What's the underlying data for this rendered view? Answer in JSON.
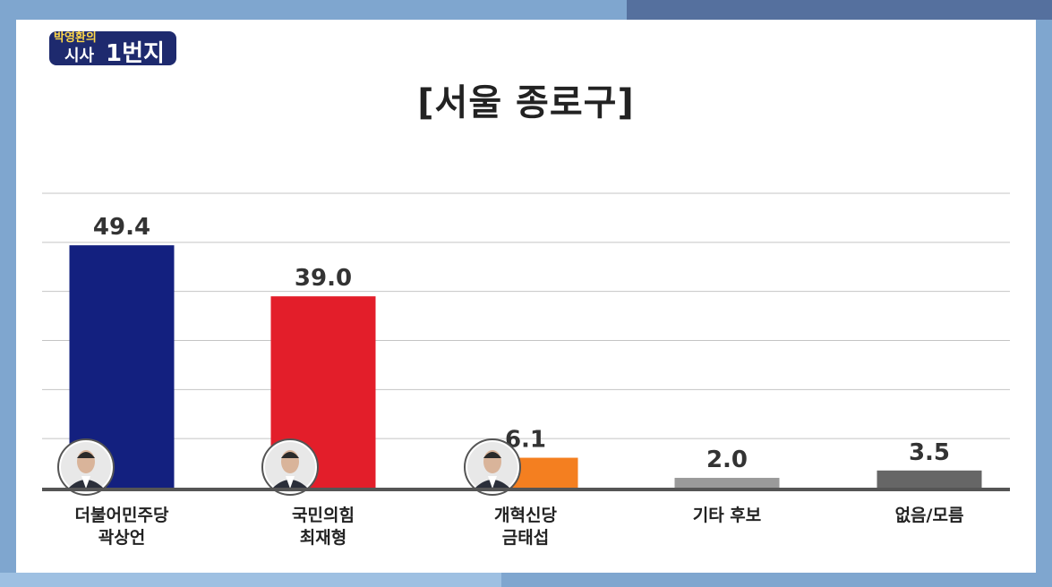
{
  "logo": {
    "line1": "박영환의",
    "line2": "시사",
    "line3": "1번지"
  },
  "title": "[서울 종로구]",
  "chart_data": {
    "type": "bar",
    "title": "[서울 종로구]",
    "categories": [
      {
        "line1": "더불어민주당",
        "line2": "곽상언"
      },
      {
        "line1": "국민의힘",
        "line2": "최재형"
      },
      {
        "line1": "개혁신당",
        "line2": "금태섭"
      },
      {
        "line1": "기타 후보",
        "line2": ""
      },
      {
        "line1": "없음/모름",
        "line2": ""
      }
    ],
    "values": [
      49.4,
      39.0,
      6.1,
      2.0,
      3.5
    ],
    "value_labels": [
      "49.4",
      "39.0",
      "6.1",
      "2.0",
      "3.5"
    ],
    "colors": [
      "#13207f",
      "#e31e2a",
      "#f47f20",
      "#9a9a9a",
      "#666666"
    ],
    "candidate_photos": [
      true,
      true,
      true,
      false,
      false
    ],
    "ylim": [
      0,
      60
    ],
    "grid": true,
    "xlabel": "",
    "ylabel": ""
  }
}
